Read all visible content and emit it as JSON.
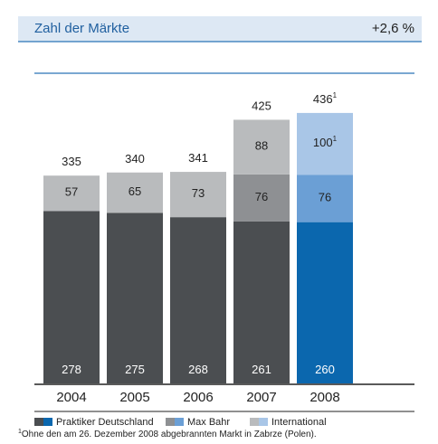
{
  "chart_data": {
    "type": "stacked_bar",
    "title": "Zahl der Märkte",
    "subtitle": "+2,6 %",
    "categories": [
      "2004",
      "2005",
      "2006",
      "2007",
      "2008"
    ],
    "highlight": "2008",
    "series": [
      {
        "name": "Praktiker Deutschland",
        "color": "#4b4e51",
        "highlight_color": "#0b67ae",
        "values": [
          278,
          275,
          268,
          261,
          260
        ]
      },
      {
        "name": "Max Bahr",
        "color": "#8e9093",
        "highlight_color": "#6b9fd5",
        "values": [
          null,
          null,
          null,
          76,
          76
        ]
      },
      {
        "name": "International",
        "color": "#b9bbbd",
        "highlight_color": "#a9c6e7",
        "values": [
          57,
          65,
          73,
          88,
          100
        ]
      }
    ],
    "totals": [
      335,
      340,
      341,
      425,
      436
    ],
    "ylim": [
      0,
      500
    ],
    "footnote": {
      "marker": "1",
      "text": "Ohne den am 26. Dezember 2008 abgebrannten Markt in Zabrze (Polen)."
    }
  }
}
